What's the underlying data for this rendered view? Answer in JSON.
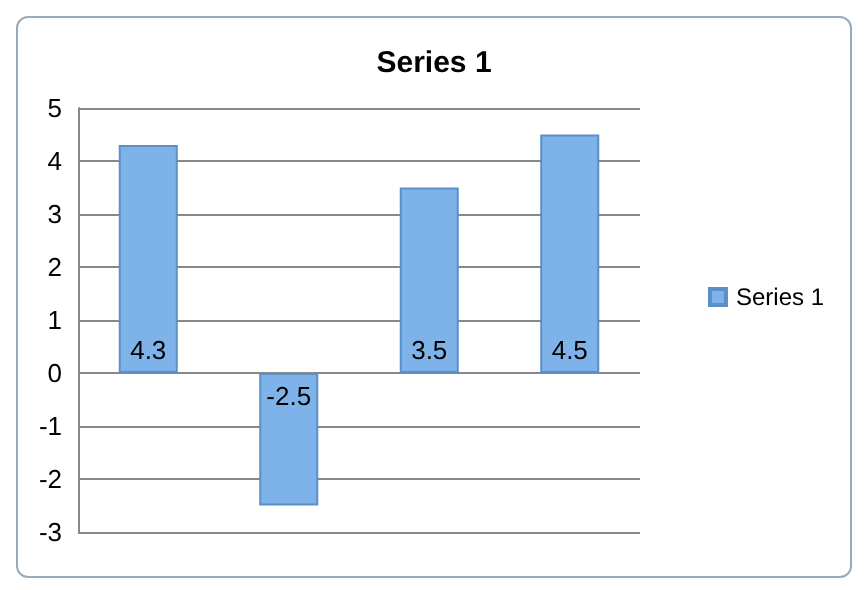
{
  "chart_data": {
    "type": "bar",
    "title": "Series 1",
    "categories": [
      null,
      null,
      null,
      null
    ],
    "series": [
      {
        "name": "Series 1",
        "color": "#7eb3ea",
        "values": [
          4.3,
          -2.5,
          3.5,
          4.5
        ]
      }
    ],
    "ylim": [
      -3,
      5
    ],
    "yticks": [
      -3,
      -2,
      -1,
      0,
      1,
      2,
      3,
      4,
      5
    ],
    "grid": "y",
    "legend": "right",
    "data_labels": true
  }
}
